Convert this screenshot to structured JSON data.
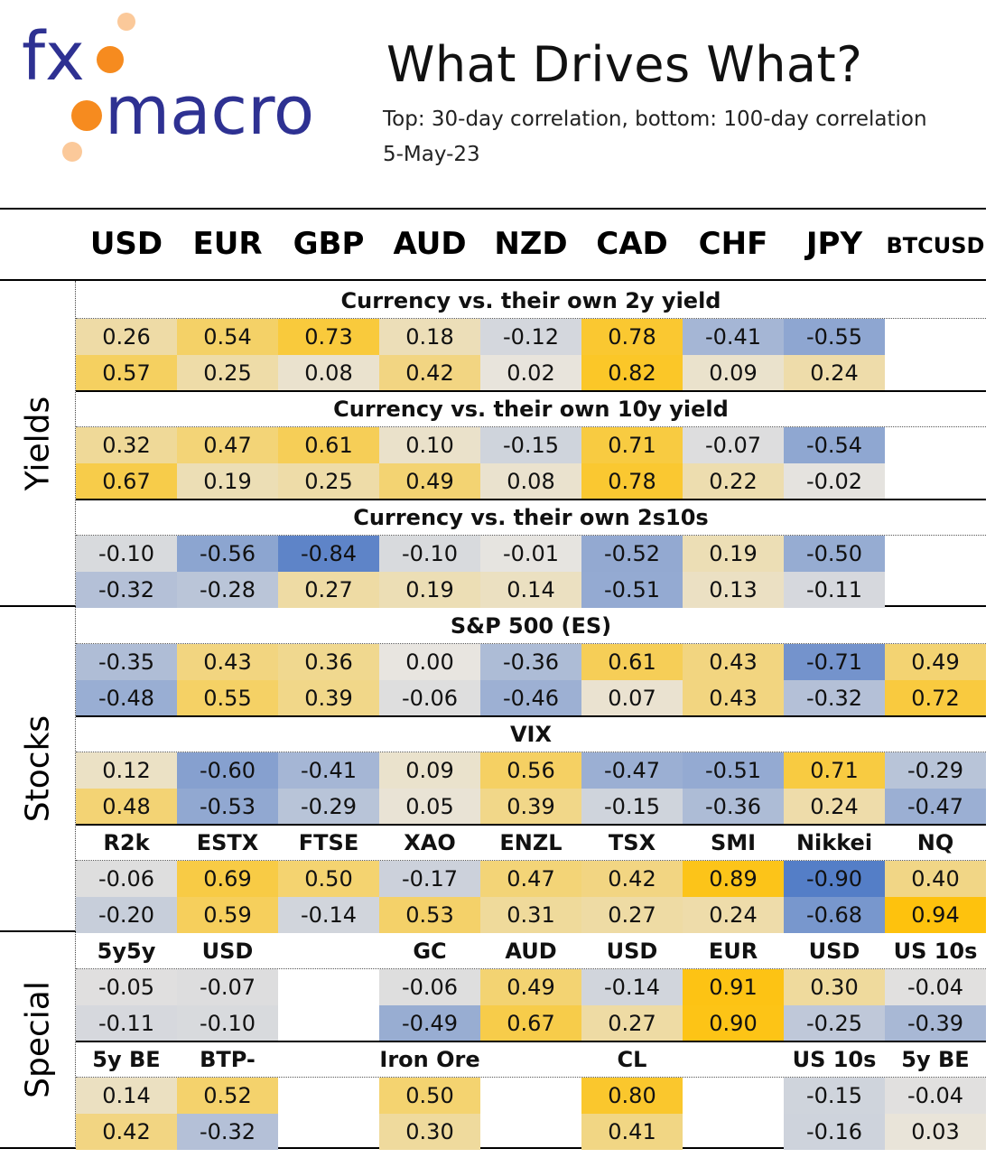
{
  "header": {
    "logo_text": "fxmacro",
    "title": "What Drives What?",
    "subtitle": "Top: 30-day correlation, bottom: 100-day correlation",
    "date": "5-May-23"
  },
  "columns": [
    "USD",
    "EUR",
    "GBP",
    "AUD",
    "NZD",
    "CAD",
    "CHF",
    "JPY",
    "BTCUSD"
  ],
  "groups": [
    {
      "label": "Yields"
    },
    {
      "label": "Stocks"
    },
    {
      "label": "Special"
    }
  ],
  "blocks": [
    {
      "type": "section",
      "title": "Currency vs. their own 2y yield",
      "top": [
        "0.26",
        "0.54",
        "0.73",
        "0.18",
        "-0.12",
        "0.78",
        "-0.41",
        "-0.55",
        ""
      ],
      "bottom": [
        "0.57",
        "0.25",
        "0.08",
        "0.42",
        "0.02",
        "0.82",
        "0.09",
        "0.24",
        ""
      ]
    },
    {
      "type": "section",
      "title": "Currency vs. their own 10y yield",
      "top": [
        "0.32",
        "0.47",
        "0.61",
        "0.10",
        "-0.15",
        "0.71",
        "-0.07",
        "-0.54",
        ""
      ],
      "bottom": [
        "0.67",
        "0.19",
        "0.25",
        "0.49",
        "0.08",
        "0.78",
        "0.22",
        "-0.02",
        ""
      ]
    },
    {
      "type": "section",
      "title": "Currency vs. their own 2s10s",
      "top": [
        "-0.10",
        "-0.56",
        "-0.84",
        "-0.10",
        "-0.01",
        "-0.52",
        "0.19",
        "-0.50",
        ""
      ],
      "bottom": [
        "-0.32",
        "-0.28",
        "0.27",
        "0.19",
        "0.14",
        "-0.51",
        "0.13",
        "-0.11",
        ""
      ]
    },
    {
      "type": "section",
      "title": "S&P 500 (ES)",
      "top": [
        "-0.35",
        "0.43",
        "0.36",
        "0.00",
        "-0.36",
        "0.61",
        "0.43",
        "-0.71",
        "0.49"
      ],
      "bottom": [
        "-0.48",
        "0.55",
        "0.39",
        "-0.06",
        "-0.46",
        "0.07",
        "0.43",
        "-0.32",
        "0.72"
      ]
    },
    {
      "type": "section",
      "title": "VIX",
      "top": [
        "0.12",
        "-0.60",
        "-0.41",
        "0.09",
        "0.56",
        "-0.47",
        "-0.51",
        "0.71",
        "-0.29"
      ],
      "bottom": [
        "0.48",
        "-0.53",
        "-0.29",
        "0.05",
        "0.39",
        "-0.15",
        "-0.36",
        "0.24",
        "-0.47"
      ]
    },
    {
      "type": "labels",
      "labels": [
        "R2k",
        "ESTX",
        "FTSE",
        "XAO",
        "ENZL",
        "TSX",
        "SMI",
        "Nikkei",
        "NQ"
      ],
      "top": [
        "-0.06",
        "0.69",
        "0.50",
        "-0.17",
        "0.47",
        "0.42",
        "0.89",
        "-0.90",
        "0.40"
      ],
      "bottom": [
        "-0.20",
        "0.59",
        "-0.14",
        "0.53",
        "0.31",
        "0.27",
        "0.24",
        "-0.68",
        "0.94"
      ]
    },
    {
      "type": "labels",
      "labels": [
        "5y5y",
        "USD",
        "",
        "GC",
        "AUD",
        "USD",
        "EUR",
        "USD",
        "US 10s"
      ],
      "top": [
        "-0.05",
        "-0.07",
        "",
        "-0.06",
        "0.49",
        "-0.14",
        "0.91",
        "0.30",
        "-0.04"
      ],
      "bottom": [
        "-0.11",
        "-0.10",
        "",
        "-0.49",
        "0.67",
        "0.27",
        "0.90",
        "-0.25",
        "-0.39"
      ]
    },
    {
      "type": "labels",
      "labels": [
        "5y BE",
        "BTP-BND",
        "",
        "Iron Ore",
        "",
        "CL",
        "",
        "US 10s",
        "5y BE"
      ],
      "top": [
        "0.14",
        "0.52",
        "",
        "0.50",
        "",
        "0.80",
        "",
        "-0.15",
        "-0.04"
      ],
      "bottom": [
        "0.42",
        "-0.32",
        "",
        "0.30",
        "",
        "0.41",
        "",
        "-0.16",
        "0.03"
      ]
    }
  ],
  "colors": {
    "positive_max": "#FFC000",
    "neutral": "#E8E5E0",
    "negative_max": "#4472C4"
  }
}
